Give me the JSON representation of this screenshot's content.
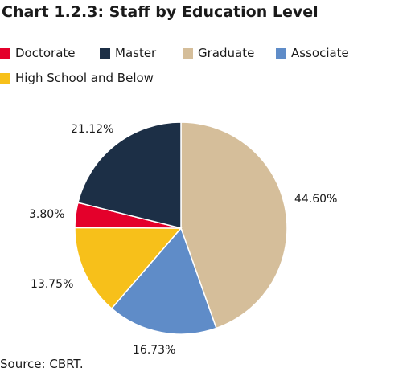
{
  "chart_data": {
    "type": "pie",
    "title": "Chart 1.2.3: Staff by Education Level",
    "legend_position": "top-left",
    "categories": [
      "Doctorate",
      "Master",
      "Graduate",
      "Associate",
      "High School and Below"
    ],
    "values": [
      3.8,
      21.12,
      44.6,
      16.73,
      13.75
    ],
    "value_labels": [
      "3.80%",
      "21.12%",
      "44.60%",
      "16.73%",
      "13.75%"
    ],
    "colors": [
      "#e4002b",
      "#1c2f46",
      "#d5be9a",
      "#5f8cc8",
      "#f7c01a"
    ],
    "slice_order_clockwise_from_top": [
      "Graduate",
      "Associate",
      "High School and Below",
      "Doctorate",
      "Master"
    ]
  },
  "source": "Source: CBRT."
}
